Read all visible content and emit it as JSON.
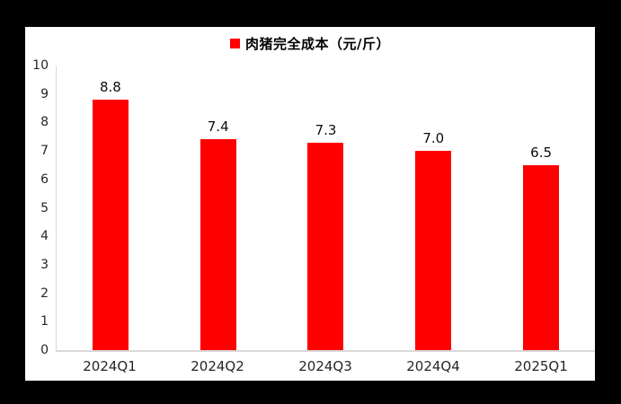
{
  "chart_data": {
    "type": "bar",
    "title": "肉猪完全成本（元/斤）",
    "categories": [
      "2024Q1",
      "2024Q2",
      "2024Q3",
      "2024Q4",
      "2025Q1"
    ],
    "values": [
      8.8,
      7.4,
      7.3,
      7.0,
      6.5
    ],
    "data_labels": [
      "8.8",
      "7.4",
      "7.3",
      "7.0",
      "6.5"
    ],
    "xlabel": "",
    "ylabel": "",
    "ylim": [
      0,
      10
    ],
    "yticks": [
      0,
      1,
      2,
      3,
      4,
      5,
      6,
      7,
      8,
      9,
      10
    ],
    "grid": false,
    "legend_position": "top-center",
    "bar_color": "#ff0000",
    "axis_line_color": "#d9d9d9",
    "text_color": "#262626",
    "plot_background": "#ffffff",
    "frame_background": "#000000"
  },
  "legend": {
    "marker_icon": "red-square-icon",
    "label": "肉猪完全成本（元/斤）"
  }
}
